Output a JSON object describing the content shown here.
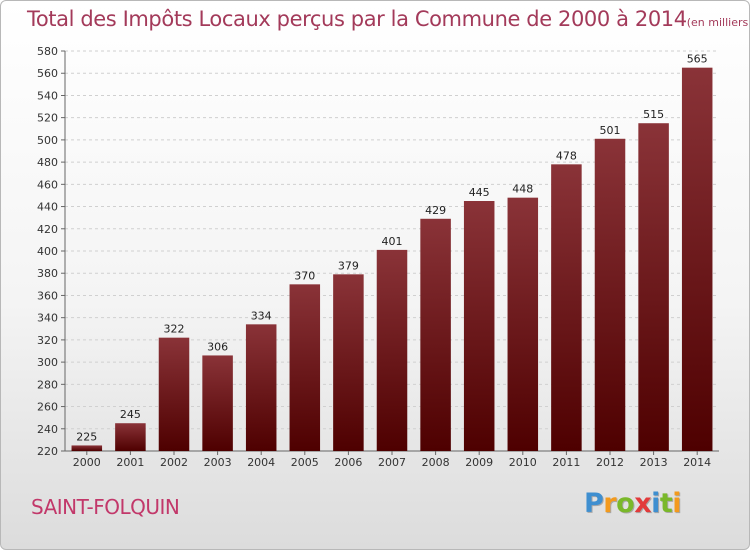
{
  "chart_data": {
    "type": "bar",
    "title": "Total des Impôts Locaux perçus par la Commune de 2000 à 2014",
    "subtitle": "(en milliers d'€)",
    "categories": [
      "2000",
      "2001",
      "2002",
      "2003",
      "2004",
      "2005",
      "2006",
      "2007",
      "2008",
      "2009",
      "2010",
      "2011",
      "2012",
      "2013",
      "2014"
    ],
    "values": [
      225,
      245,
      322,
      306,
      334,
      370,
      379,
      401,
      429,
      445,
      448,
      478,
      501,
      515,
      565
    ],
    "ylim": [
      220,
      580
    ],
    "ytick_step": 20,
    "xlabel": "",
    "ylabel": "",
    "grid": true,
    "colors": {
      "bar_top": "#8a3338",
      "bar_bottom": "#4e0000",
      "grid": "#d0d0d0",
      "title": "#a33a5a"
    }
  },
  "commune": "SAINT-FOLQUIN",
  "brand": {
    "letters": [
      "P",
      "r",
      "o",
      "x",
      "i",
      "t",
      "i"
    ],
    "colors": [
      "#3f8fd0",
      "#f39a1d",
      "#7ab82a",
      "#e23a3a",
      "#3f8fd0",
      "#7ab82a",
      "#f39a1d"
    ]
  }
}
